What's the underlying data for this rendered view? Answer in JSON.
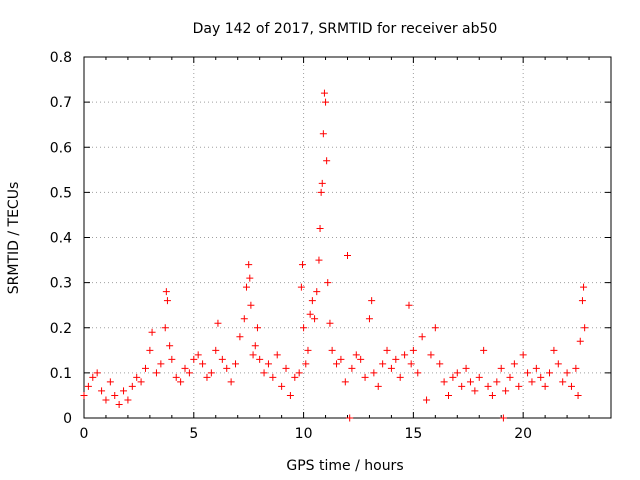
{
  "chart_data": {
    "type": "scatter",
    "title": "Day 142 of 2017, SRMTID for receiver ab50",
    "xlabel": "GPS time / hours",
    "ylabel": "SRMTID / TECUs",
    "xlim": [
      0,
      24
    ],
    "ylim": [
      0,
      0.8
    ],
    "xticks": [
      0,
      5,
      10,
      15,
      20
    ],
    "yticks": [
      0,
      0.1,
      0.2,
      0.3,
      0.4,
      0.5,
      0.6,
      0.7,
      0.8
    ],
    "grid": true,
    "marker": "plus",
    "color": "#ff0000",
    "series": [
      {
        "name": "SRMTID",
        "points": [
          [
            0.0,
            0.05
          ],
          [
            0.2,
            0.07
          ],
          [
            0.4,
            0.09
          ],
          [
            0.6,
            0.1
          ],
          [
            0.8,
            0.06
          ],
          [
            1.0,
            0.04
          ],
          [
            1.2,
            0.08
          ],
          [
            1.4,
            0.05
          ],
          [
            1.6,
            0.03
          ],
          [
            1.8,
            0.06
          ],
          [
            2.0,
            0.04
          ],
          [
            2.2,
            0.07
          ],
          [
            2.4,
            0.09
          ],
          [
            2.6,
            0.08
          ],
          [
            2.8,
            0.11
          ],
          [
            3.0,
            0.15
          ],
          [
            3.1,
            0.19
          ],
          [
            3.3,
            0.1
          ],
          [
            3.5,
            0.12
          ],
          [
            3.7,
            0.2
          ],
          [
            3.75,
            0.28
          ],
          [
            3.8,
            0.26
          ],
          [
            3.9,
            0.16
          ],
          [
            4.0,
            0.13
          ],
          [
            4.2,
            0.09
          ],
          [
            4.4,
            0.08
          ],
          [
            4.6,
            0.11
          ],
          [
            4.8,
            0.1
          ],
          [
            5.0,
            0.13
          ],
          [
            5.2,
            0.14
          ],
          [
            5.4,
            0.12
          ],
          [
            5.6,
            0.09
          ],
          [
            5.8,
            0.1
          ],
          [
            6.0,
            0.15
          ],
          [
            6.1,
            0.21
          ],
          [
            6.3,
            0.13
          ],
          [
            6.5,
            0.11
          ],
          [
            6.7,
            0.08
          ],
          [
            6.9,
            0.12
          ],
          [
            7.1,
            0.18
          ],
          [
            7.3,
            0.22
          ],
          [
            7.4,
            0.29
          ],
          [
            7.5,
            0.34
          ],
          [
            7.55,
            0.31
          ],
          [
            7.6,
            0.25
          ],
          [
            7.7,
            0.14
          ],
          [
            7.8,
            0.16
          ],
          [
            7.9,
            0.2
          ],
          [
            8.0,
            0.13
          ],
          [
            8.2,
            0.1
          ],
          [
            8.4,
            0.12
          ],
          [
            8.6,
            0.09
          ],
          [
            8.8,
            0.14
          ],
          [
            9.0,
            0.07
          ],
          [
            9.2,
            0.11
          ],
          [
            9.4,
            0.05
          ],
          [
            9.6,
            0.09
          ],
          [
            9.8,
            0.1
          ],
          [
            9.9,
            0.29
          ],
          [
            9.95,
            0.34
          ],
          [
            10.0,
            0.2
          ],
          [
            10.1,
            0.12
          ],
          [
            10.2,
            0.15
          ],
          [
            10.3,
            0.23
          ],
          [
            10.4,
            0.26
          ],
          [
            10.5,
            0.22
          ],
          [
            10.6,
            0.28
          ],
          [
            10.7,
            0.35
          ],
          [
            10.75,
            0.42
          ],
          [
            10.8,
            0.5
          ],
          [
            10.85,
            0.52
          ],
          [
            10.9,
            0.63
          ],
          [
            10.95,
            0.72
          ],
          [
            11.0,
            0.7
          ],
          [
            11.05,
            0.57
          ],
          [
            11.1,
            0.3
          ],
          [
            11.2,
            0.21
          ],
          [
            11.3,
            0.15
          ],
          [
            11.5,
            0.12
          ],
          [
            11.7,
            0.13
          ],
          [
            11.9,
            0.08
          ],
          [
            12.0,
            0.36
          ],
          [
            12.1,
            0.0
          ],
          [
            12.2,
            0.11
          ],
          [
            12.4,
            0.14
          ],
          [
            12.6,
            0.13
          ],
          [
            12.8,
            0.09
          ],
          [
            13.0,
            0.22
          ],
          [
            13.1,
            0.26
          ],
          [
            13.2,
            0.1
          ],
          [
            13.4,
            0.07
          ],
          [
            13.6,
            0.12
          ],
          [
            13.8,
            0.15
          ],
          [
            14.0,
            0.11
          ],
          [
            14.2,
            0.13
          ],
          [
            14.4,
            0.09
          ],
          [
            14.6,
            0.14
          ],
          [
            14.8,
            0.25
          ],
          [
            14.9,
            0.12
          ],
          [
            15.0,
            0.15
          ],
          [
            15.2,
            0.1
          ],
          [
            15.4,
            0.18
          ],
          [
            15.6,
            0.04
          ],
          [
            15.8,
            0.14
          ],
          [
            16.0,
            0.2
          ],
          [
            16.2,
            0.12
          ],
          [
            16.4,
            0.08
          ],
          [
            16.6,
            0.05
          ],
          [
            16.8,
            0.09
          ],
          [
            17.0,
            0.1
          ],
          [
            17.2,
            0.07
          ],
          [
            17.4,
            0.11
          ],
          [
            17.6,
            0.08
          ],
          [
            17.8,
            0.06
          ],
          [
            18.0,
            0.09
          ],
          [
            18.2,
            0.15
          ],
          [
            18.4,
            0.07
          ],
          [
            18.6,
            0.05
          ],
          [
            18.8,
            0.08
          ],
          [
            19.0,
            0.11
          ],
          [
            19.1,
            0.0
          ],
          [
            19.2,
            0.06
          ],
          [
            19.4,
            0.09
          ],
          [
            19.6,
            0.12
          ],
          [
            19.8,
            0.07
          ],
          [
            20.0,
            0.14
          ],
          [
            20.2,
            0.1
          ],
          [
            20.4,
            0.08
          ],
          [
            20.6,
            0.11
          ],
          [
            20.8,
            0.09
          ],
          [
            21.0,
            0.07
          ],
          [
            21.2,
            0.1
          ],
          [
            21.4,
            0.15
          ],
          [
            21.6,
            0.12
          ],
          [
            21.8,
            0.08
          ],
          [
            22.0,
            0.1
          ],
          [
            22.2,
            0.07
          ],
          [
            22.4,
            0.11
          ],
          [
            22.5,
            0.05
          ],
          [
            22.6,
            0.17
          ],
          [
            22.7,
            0.26
          ],
          [
            22.75,
            0.29
          ],
          [
            22.8,
            0.2
          ]
        ]
      }
    ]
  }
}
